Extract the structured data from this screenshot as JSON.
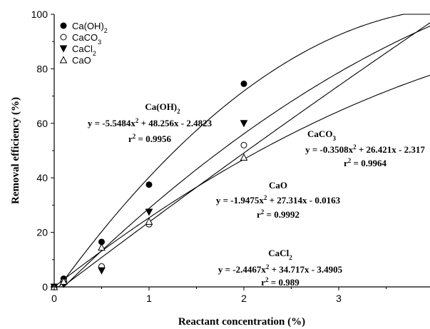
{
  "chart_data": {
    "type": "scatter",
    "title": "",
    "xlabel": "Reactant concentration (%)",
    "ylabel": "Removal efficiency (%)",
    "xlim": [
      0,
      4
    ],
    "ylim": [
      0,
      100
    ],
    "xticks": [
      "0",
      "1",
      "2",
      "3"
    ],
    "yticks": [
      "0",
      "20",
      "40",
      "60",
      "80",
      "100"
    ],
    "grid": false,
    "legend_position": "top-left",
    "series": [
      {
        "name": "Ca(OH)2",
        "label_main": "Ca(OH)",
        "label_sub": "2",
        "marker": "filled-circle",
        "x": [
          0,
          0.1,
          0.5,
          1,
          2
        ],
        "y": [
          0,
          3,
          16.5,
          37.5,
          74.5
        ],
        "fit": [
          -5.5484,
          48.256,
          -2.4823
        ]
      },
      {
        "name": "CaCO3",
        "label_main": "CaCO",
        "label_sub": "3",
        "marker": "open-circle",
        "x": [
          0,
          0.1,
          0.5,
          1,
          2
        ],
        "y": [
          0,
          2,
          7.5,
          23,
          52
        ],
        "fit": [
          -0.3508,
          26.421,
          -2.317
        ]
      },
      {
        "name": "CaCl2",
        "label_main": "CaCl",
        "label_sub": "2",
        "marker": "filled-triangle-down",
        "x": [
          0,
          0.1,
          0.5,
          1,
          2
        ],
        "y": [
          0,
          1,
          6,
          27.5,
          60
        ],
        "fit": [
          -2.4467,
          34.717,
          -3.4905
        ]
      },
      {
        "name": "CaO",
        "label_main": "CaO",
        "label_sub": "",
        "marker": "open-triangle-up",
        "x": [
          0,
          0.1,
          0.5,
          1,
          2
        ],
        "y": [
          0,
          2,
          14.5,
          24,
          47.5
        ],
        "fit": [
          -1.9475,
          27.314,
          -0.0163
        ]
      }
    ],
    "annotations": [
      {
        "series": "Ca(OH)2",
        "label_main": "Ca(OH)",
        "label_sub": "2",
        "equation": [
          "y = -5.5484x",
          "2",
          " + 48.256x - 2.4823"
        ],
        "r2": [
          "r",
          "2",
          " = 0.9956"
        ]
      },
      {
        "series": "CaCO3",
        "label_main": "CaCO",
        "label_sub": "3",
        "equation": [
          "y = -0.3508x",
          "2",
          " + 26.421x - 2.317"
        ],
        "r2": [
          "r",
          "2",
          " = 0.9964"
        ]
      },
      {
        "series": "CaO",
        "label_main": "CaO",
        "label_sub": "",
        "equation": [
          "y = -1.9475x",
          "2",
          " + 27.314x - 0.0163"
        ],
        "r2": [
          "r",
          "2",
          " = 0.9992"
        ]
      },
      {
        "series": "CaCl2",
        "label_main": "CaCl",
        "label_sub": "2",
        "equation": [
          "y = -2.4467x",
          "2",
          " + 34.717x - 3.4905"
        ],
        "r2": [
          "r",
          "2",
          " = 0.989"
        ]
      }
    ]
  }
}
